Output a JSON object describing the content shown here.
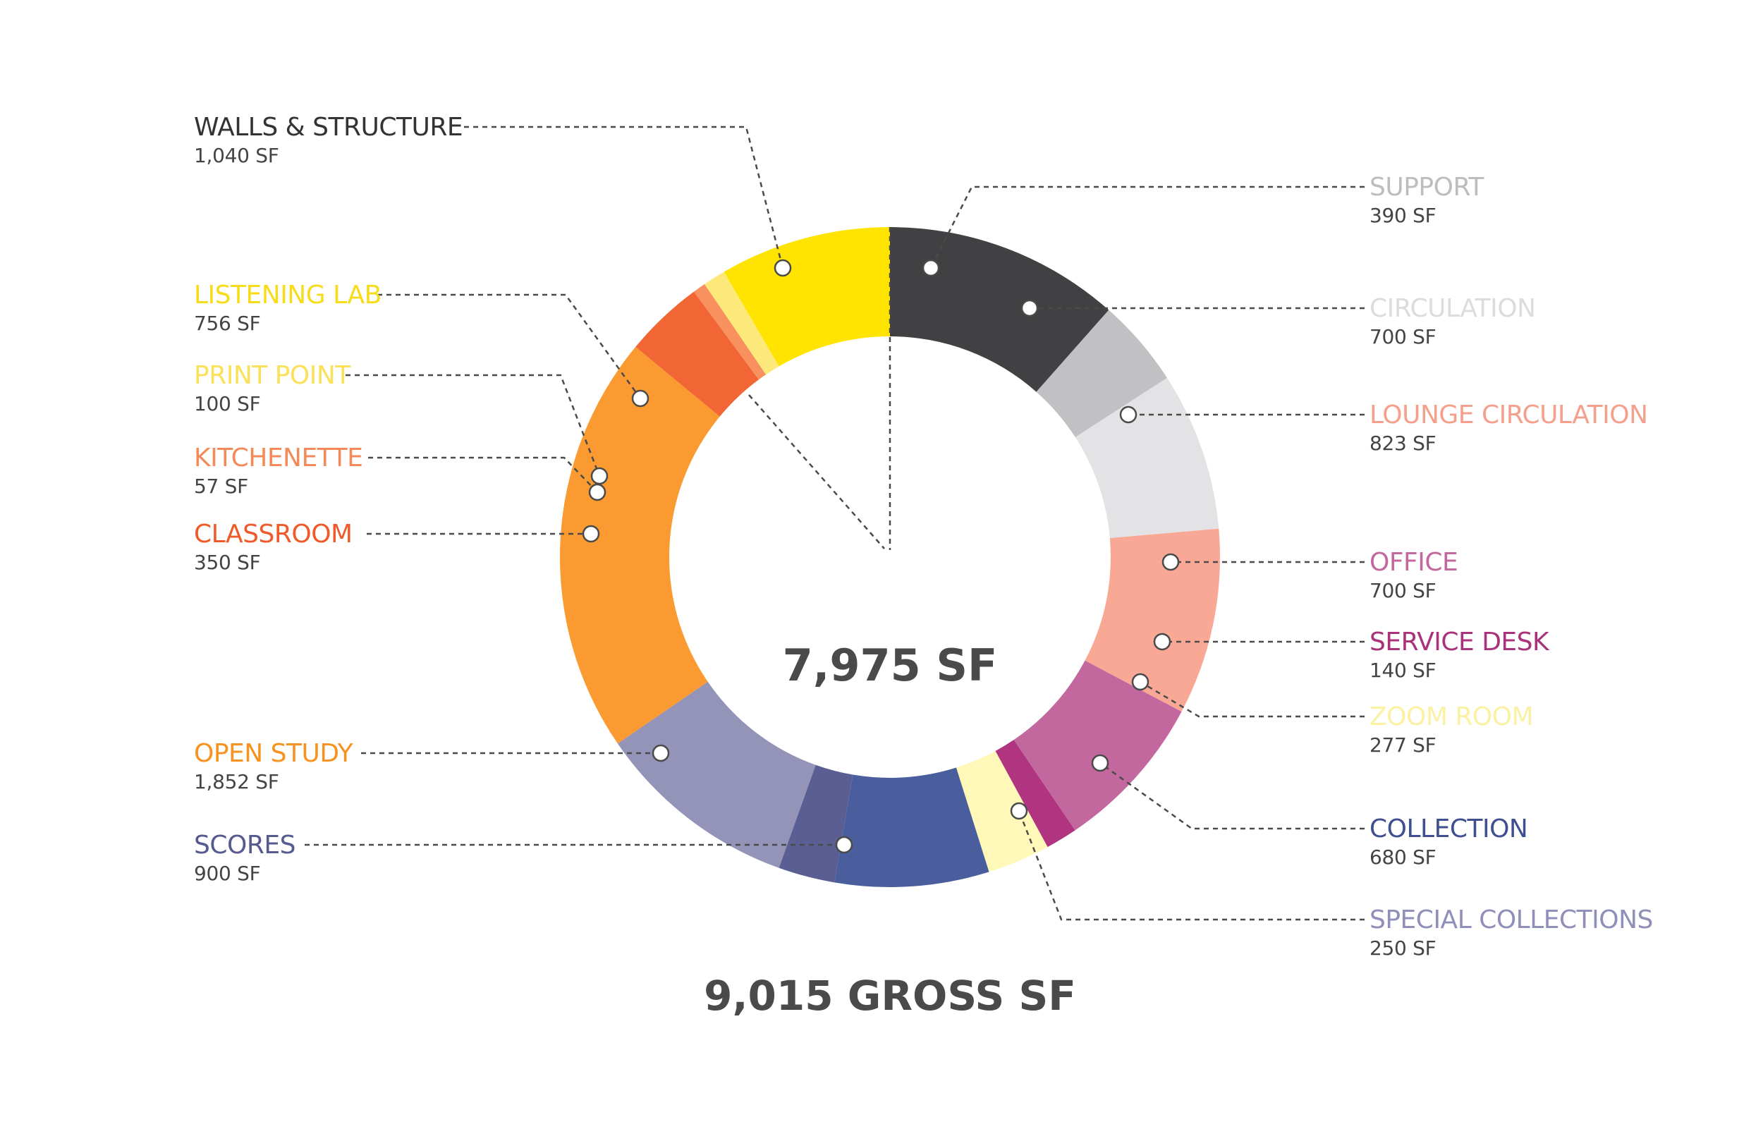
{
  "chart_data": {
    "type": "pie",
    "title": "9,015 GROSS SF",
    "center_label": "7,975 SF",
    "series": [
      {
        "name": "WALLS & STRUCTURE",
        "value_label": "1,040 SF",
        "value": 1040,
        "color": "#414042",
        "label_color": "#333333"
      },
      {
        "name": "SUPPORT",
        "value_label": "390 SF",
        "value": 390,
        "color": "#c1c0c2",
        "label_color": "#bdbdbd"
      },
      {
        "name": "CIRCULATION",
        "value_label": "700 SF",
        "value": 700,
        "color": "#e3e3e5",
        "label_color": "#dcdcdc"
      },
      {
        "name": "LOUNGE CIRCULATION",
        "value_label": "823 SF",
        "value": 823,
        "color": "#f9a896",
        "label_color": "#f4a08c"
      },
      {
        "name": "OFFICE",
        "value_label": "700 SF",
        "value": 700,
        "color": "#c3689f",
        "label_color": "#c3689f"
      },
      {
        "name": "SERVICE DESK",
        "value_label": "140 SF",
        "value": 140,
        "color": "#b0347f",
        "label_color": "#a9327b"
      },
      {
        "name": "ZOOM ROOM",
        "value_label": "277 SF",
        "value": 277,
        "color": "#fff8b8",
        "label_color": "#fbf1a3"
      },
      {
        "name": "COLLECTION",
        "value_label": "680 SF",
        "value": 680,
        "color": "#4a5e9e",
        "label_color": "#3f4f8f"
      },
      {
        "name": "SPECIAL COLLECTIONS",
        "value_label": "250 SF",
        "value": 250,
        "color": "#5a5e93",
        "label_color": "#8f8fb9"
      },
      {
        "name": "SCORES",
        "value_label": "900 SF",
        "value": 900,
        "color": "#9493b8",
        "label_color": "#555a8f"
      },
      {
        "name": "OPEN STUDY",
        "value_label": "1,852 SF",
        "value": 1852,
        "color": "#fa9a31",
        "label_color": "#f7921e"
      },
      {
        "name": "CLASSROOM",
        "value_label": "350 SF",
        "value": 350,
        "color": "#f26535",
        "label_color": "#ee5a2a"
      },
      {
        "name": "KITCHENETTE",
        "value_label": "57 SF",
        "value": 57,
        "color": "#f9915f",
        "label_color": "#f58a59"
      },
      {
        "name": "PRINT POINT",
        "value_label": "100 SF",
        "value": 100,
        "color": "#fde97a",
        "label_color": "#fbe15a"
      },
      {
        "name": "LISTENING LAB",
        "value_label": "756 SF",
        "value": 756,
        "color": "#fee400",
        "label_color": "#f7dc1b"
      }
    ]
  }
}
